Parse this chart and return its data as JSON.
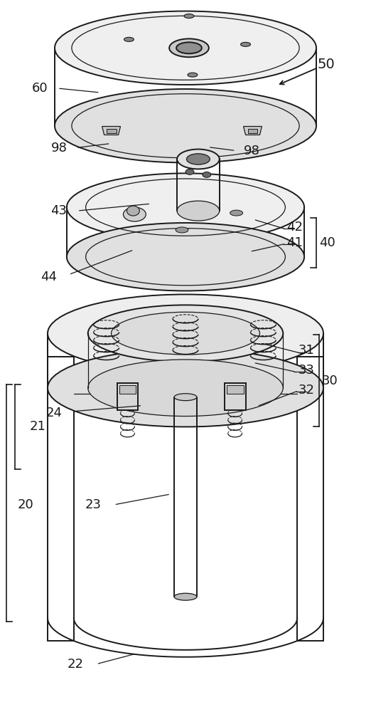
{
  "bg_color": "#ffffff",
  "line_color": "#1a1a1a",
  "figsize": [
    5.22,
    10.0
  ],
  "dpi": 100
}
